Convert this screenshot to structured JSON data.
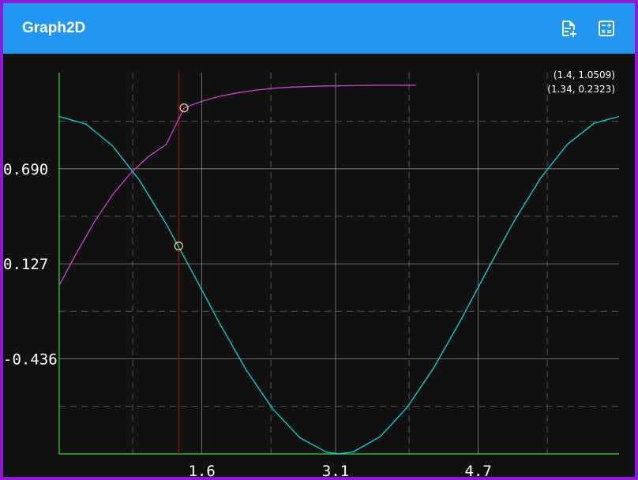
{
  "app": {
    "title": "Graph2D",
    "actions": [
      {
        "name": "add-file",
        "icon": "file-plus-icon"
      },
      {
        "name": "calculator",
        "icon": "calculator-icon"
      }
    ]
  },
  "readouts": [
    "(1.4, 1.0509)",
    "(1.34, 0.2323)"
  ],
  "colors": {
    "appbar": "#2196f3",
    "background": "#111111",
    "frame": "#8d1bd6",
    "axes": "#33dd33",
    "grid": "#bbbbbb",
    "cursor_line": "#8b1a1a",
    "marker": "#e6e67a"
  },
  "chart_data": {
    "type": "line",
    "title": "",
    "xlabel": "",
    "ylabel": "",
    "xlim": [
      0,
      6.28
    ],
    "ylim": [
      -1.0,
      1.26
    ],
    "x_ticks": [
      1.6,
      3.1,
      4.7
    ],
    "x_tick_labels": [
      "1.6",
      "3.1",
      "4.7"
    ],
    "y_ticks": [
      0.69,
      0.127,
      -0.436
    ],
    "y_tick_labels": [
      "0.690",
      "0.127",
      "-0.436"
    ],
    "grid": true,
    "legend": "none",
    "cursor_x": 1.34,
    "series": [
      {
        "color": "#00e5e5",
        "x": [
          0,
          0.3,
          0.6,
          0.9,
          1.2,
          1.5,
          1.8,
          2.1,
          2.4,
          2.7,
          3.0,
          3.14,
          3.3,
          3.6,
          3.9,
          4.2,
          4.5,
          4.8,
          5.1,
          5.4,
          5.7,
          6.0,
          6.28
        ],
        "y": [
          1.0,
          0.955,
          0.825,
          0.622,
          0.362,
          0.071,
          -0.227,
          -0.505,
          -0.737,
          -0.904,
          -0.99,
          -1.0,
          -0.987,
          -0.897,
          -0.726,
          -0.49,
          -0.211,
          0.087,
          0.378,
          0.635,
          0.835,
          0.96,
          1.0
        ]
      },
      {
        "color": "#e040e0",
        "x": [
          0,
          0.2,
          0.4,
          0.6,
          0.8,
          1.0,
          1.2,
          1.4,
          1.6,
          1.8,
          2.0,
          2.2,
          2.4,
          2.6,
          2.8,
          3.0,
          3.2,
          3.4,
          3.6,
          3.8,
          4.0
        ],
        "y": [
          0.0,
          0.197,
          0.38,
          0.537,
          0.664,
          0.762,
          0.834,
          1.0509,
          1.09,
          1.12,
          1.14,
          1.156,
          1.167,
          1.174,
          1.178,
          1.181,
          1.183,
          1.184,
          1.185,
          1.185,
          1.185
        ]
      }
    ],
    "markers": [
      {
        "x": 1.4,
        "y": 1.0509
      },
      {
        "x": 1.34,
        "y": 0.2323
      }
    ]
  }
}
